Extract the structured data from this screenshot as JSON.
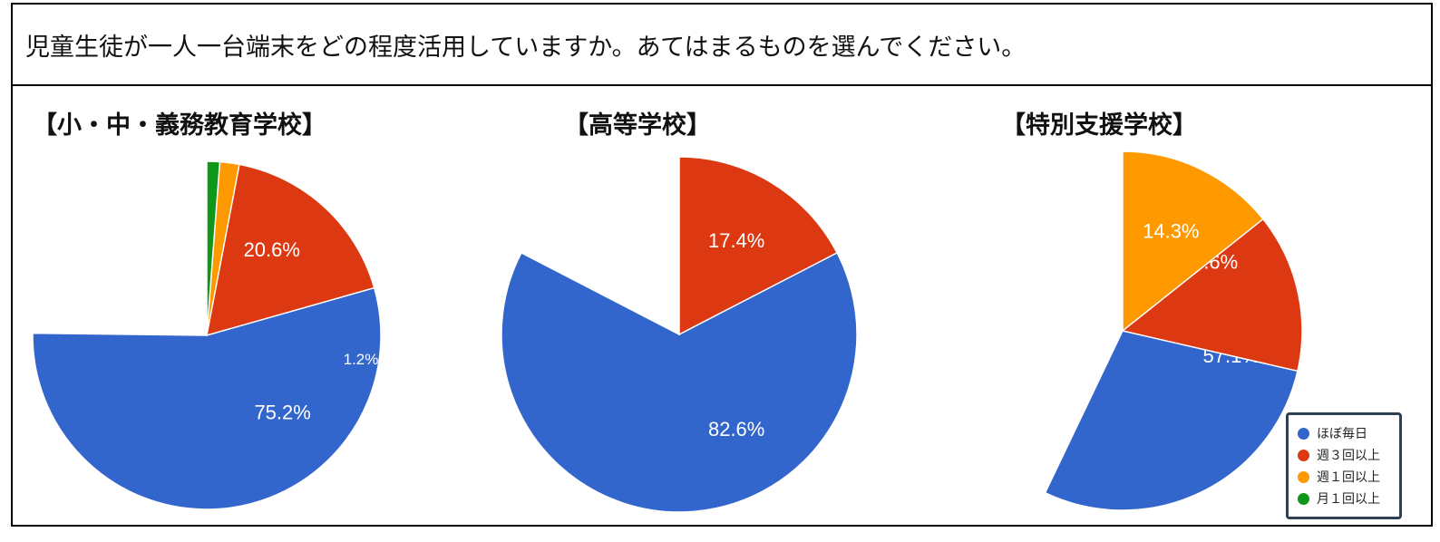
{
  "question": "児童生徒が一人一台端末をどの程度活用していますか。あてはまるものを選んでください。",
  "legend": [
    {
      "label": "ほぼ毎日",
      "color": "#3366cc"
    },
    {
      "label": "週３回以上",
      "color": "#dc3912"
    },
    {
      "label": "週１回以上",
      "color": "#ff9900"
    },
    {
      "label": "月１回以上",
      "color": "#109618"
    }
  ],
  "chart_data": [
    {
      "type": "pie",
      "title": "【小・中・義務教育学校】",
      "categories": [
        "ほぼ毎日",
        "週３回以上",
        "週１回以上",
        "月１回以上"
      ],
      "values": [
        75.2,
        20.6,
        3.0,
        1.2
      ],
      "labels": [
        "75.2%",
        "20.6%",
        "",
        "1.2%"
      ],
      "colors": [
        "#3366cc",
        "#dc3912",
        "#ff9900",
        "#109618"
      ]
    },
    {
      "type": "pie",
      "title": "【高等学校】",
      "categories": [
        "ほぼ毎日",
        "週３回以上"
      ],
      "values": [
        82.6,
        17.4
      ],
      "labels": [
        "82.6%",
        "17.4%"
      ],
      "colors": [
        "#3366cc",
        "#dc3912"
      ]
    },
    {
      "type": "pie",
      "title": "【特別支援学校】",
      "categories": [
        "ほぼ毎日",
        "週３回以上",
        "週１回以上"
      ],
      "values": [
        57.1,
        28.6,
        14.3
      ],
      "labels": [
        "57.1%",
        "28.6%",
        "14.3%"
      ],
      "colors": [
        "#3366cc",
        "#dc3912",
        "#ff9900"
      ]
    }
  ]
}
